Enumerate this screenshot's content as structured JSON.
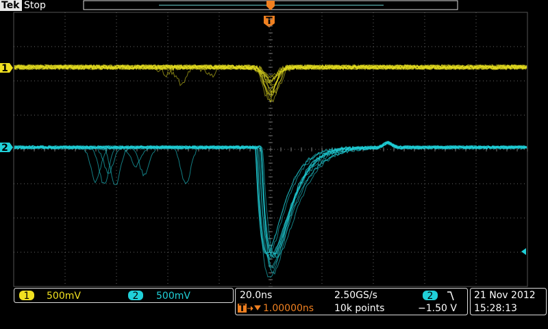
{
  "header": {
    "brand": "Tek",
    "status": "Stop",
    "trigger_marker": "T"
  },
  "channel_markers": {
    "ch1": "1",
    "ch2": "2"
  },
  "footer": {
    "ch1": {
      "label": "1",
      "scale": "500mV"
    },
    "ch2": {
      "label": "2",
      "scale": "500mV"
    },
    "timebase": "20.0ns",
    "sample_rate": "2.50GS/s",
    "trigger_icon": "T",
    "trigger_position": "1.00000ns",
    "record_length": "10k points",
    "trigger_source": "2",
    "trigger_level": "−1.50 V",
    "date": "21 Nov 2012",
    "time": "15:28:13"
  }
}
